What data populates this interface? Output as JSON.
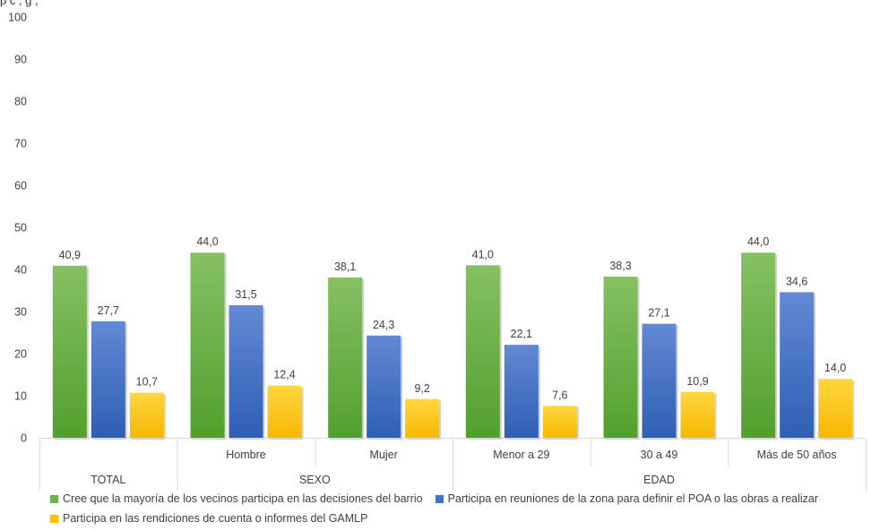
{
  "top_text": "p    c  ,    g ,",
  "colors": {
    "green": "#6bb24a",
    "blue": "#4472c4",
    "yellow": "#ffc000",
    "axis": "#d9d9d9",
    "text": "#404040"
  },
  "chart_data": {
    "type": "bar",
    "title": "",
    "xlabel": "",
    "ylabel": "",
    "ylim": [
      0,
      100
    ],
    "yticks": [
      "0",
      "10",
      "20",
      "30",
      "40",
      "50",
      "60",
      "70",
      "80",
      "90",
      "100"
    ],
    "grid": false,
    "legend_position": "bottom",
    "groups": [
      {
        "label": "TOTAL",
        "categories": [
          ""
        ]
      },
      {
        "label": "SEXO",
        "categories": [
          "Hombre",
          "Mujer"
        ]
      },
      {
        "label": "EDAD",
        "categories": [
          "Menor a 29",
          "30 a 49",
          "Más de 50 años"
        ]
      }
    ],
    "categories": [
      "TOTAL",
      "Hombre",
      "Mujer",
      "Menor a 29",
      "30 a 49",
      "Más de 50 años"
    ],
    "series": [
      {
        "name": "Cree que la mayoría de los vecinos participa en las decisiones del barrio",
        "color": "#6bb24a",
        "values": [
          40.9,
          44.0,
          38.1,
          41.0,
          38.3,
          44.0
        ],
        "labels": [
          "40,9",
          "44,0",
          "38,1",
          "41,0",
          "38,3",
          "44,0"
        ]
      },
      {
        "name": "Participa en reuniones de la zona para definir el POA o las obras a realizar",
        "color": "#4472c4",
        "values": [
          27.7,
          31.5,
          24.3,
          22.1,
          27.1,
          34.6
        ],
        "labels": [
          "27,7",
          "31,5",
          "24,3",
          "22,1",
          "27,1",
          "34,6"
        ]
      },
      {
        "name": "Participa en las rendiciones de cuenta o informes del GAMLP",
        "color": "#ffc000",
        "values": [
          10.7,
          12.4,
          9.2,
          7.6,
          10.9,
          14.0
        ],
        "labels": [
          "10,7",
          "12,4",
          "9,2",
          "7,6",
          "10,9",
          "14,0"
        ]
      }
    ]
  }
}
